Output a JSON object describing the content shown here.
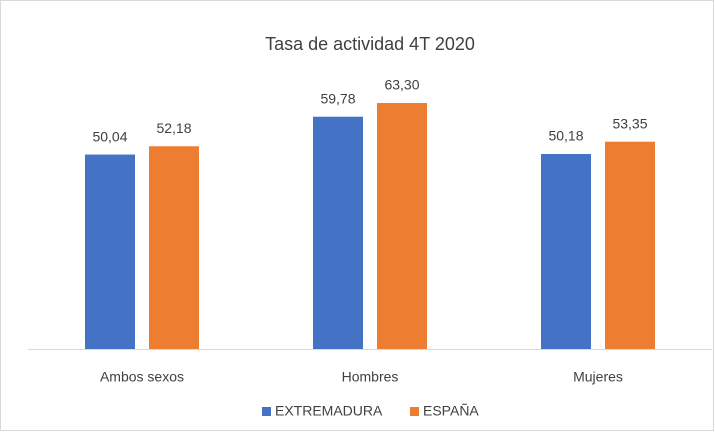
{
  "chart_data": {
    "type": "bar",
    "title": "Tasa de actividad 4T 2020",
    "categories": [
      "Ambos sexos",
      "Hombres",
      "Mujeres"
    ],
    "series": [
      {
        "name": "EXTREMADURA",
        "color": "#4472c4",
        "values": [
          50.04,
          59.78,
          50.18
        ],
        "value_labels": [
          "50,04",
          "59,78",
          "50,18"
        ]
      },
      {
        "name": "ESPAÑA",
        "color": "#ed7d31",
        "values": [
          52.18,
          63.3,
          53.35
        ],
        "value_labels": [
          "52,18",
          "63,30",
          "53,35"
        ]
      }
    ],
    "ylim": [
      0,
      70
    ],
    "legend": "bottom"
  }
}
